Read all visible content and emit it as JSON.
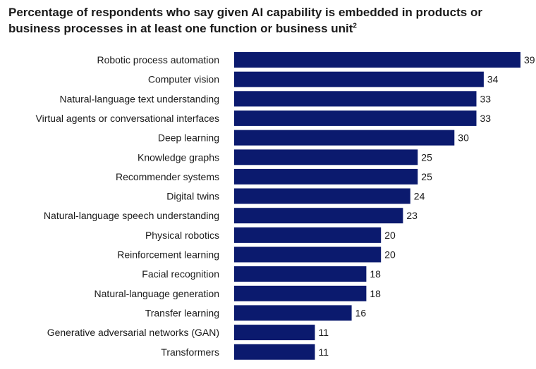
{
  "chart_data": {
    "type": "bar",
    "orientation": "horizontal",
    "title": "Percentage of respondents who say given AI capability is embedded in products or business processes in at least one function or business unit",
    "title_footnote": "2",
    "categories": [
      "Robotic process automation",
      "Computer vision",
      "Natural-language text understanding",
      "Virtual agents or conversational interfaces",
      "Deep learning",
      "Knowledge graphs",
      "Recommender systems",
      "Digital twins",
      "Natural-language speech understanding",
      "Physical robotics",
      "Reinforcement learning",
      "Facial recognition",
      "Natural-language generation",
      "Transfer learning",
      "Generative adversarial networks (GAN)",
      "Transformers"
    ],
    "values": [
      39,
      34,
      33,
      33,
      30,
      25,
      25,
      24,
      23,
      20,
      20,
      18,
      18,
      16,
      11,
      11
    ],
    "xlabel": "",
    "ylabel": "",
    "xlim": [
      0,
      40
    ],
    "bar_color": "#0b1a6e"
  }
}
